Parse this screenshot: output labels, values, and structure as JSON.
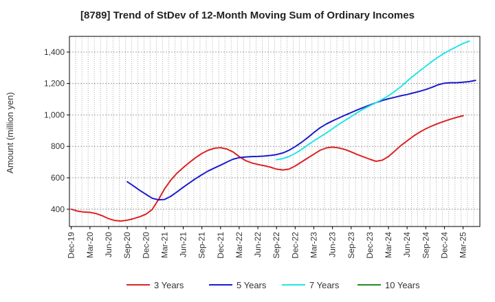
{
  "chart_data": {
    "type": "line",
    "title": "[8789]  Trend of StDev of 12-Month Moving Sum of Ordinary Incomes",
    "xlabel": "",
    "ylabel": "Amount (million yen)",
    "ylim": [
      290,
      1500
    ],
    "yticks": [
      400,
      600,
      800,
      1000,
      1200,
      1400
    ],
    "ytick_labels": [
      "400",
      "600",
      "800",
      "1,000",
      "1,200",
      "1,400"
    ],
    "xticks": [
      "Dec-19",
      "Mar-20",
      "Jun-20",
      "Sep-20",
      "Dec-20",
      "Mar-21",
      "Jun-21",
      "Sep-21",
      "Dec-21",
      "Mar-22",
      "Jun-22",
      "Sep-22",
      "Dec-22",
      "Mar-23",
      "Jun-23",
      "Sep-23",
      "Dec-23",
      "Mar-24",
      "Jun-24",
      "Sep-24",
      "Dec-24",
      "Mar-25"
    ],
    "grid": true,
    "legend_position": "bottom",
    "series": [
      {
        "name": "3 Years",
        "color": "#dd2222",
        "start_index": 0,
        "values": [
          400,
          388,
          382,
          380,
          372,
          358,
          340,
          328,
          325,
          330,
          340,
          352,
          368,
          398,
          460,
          530,
          585,
          630,
          665,
          698,
          728,
          755,
          775,
          788,
          792,
          783,
          765,
          735,
          710,
          695,
          685,
          677,
          668,
          655,
          650,
          655,
          675,
          700,
          725,
          750,
          775,
          790,
          795,
          790,
          780,
          765,
          748,
          733,
          718,
          705,
          712,
          735,
          770,
          805,
          835,
          865,
          890,
          912,
          930,
          946,
          960,
          973,
          985,
          995
        ]
      },
      {
        "name": "5 Years",
        "color": "#1a1acc",
        "start_index": 9,
        "values": [
          575,
          548,
          520,
          495,
          470,
          460,
          462,
          482,
          510,
          540,
          568,
          595,
          620,
          643,
          662,
          680,
          700,
          718,
          728,
          732,
          735,
          736,
          738,
          742,
          748,
          758,
          775,
          798,
          825,
          855,
          888,
          918,
          942,
          962,
          980,
          998,
          1015,
          1032,
          1048,
          1063,
          1078,
          1092,
          1103,
          1112,
          1122,
          1130,
          1140,
          1150,
          1162,
          1176,
          1192,
          1202,
          1205,
          1205,
          1208,
          1212,
          1220
        ]
      },
      {
        "name": "7 Years",
        "color": "#22e5e5",
        "start_index": 33,
        "values": [
          715,
          722,
          735,
          755,
          780,
          808,
          835,
          860,
          885,
          912,
          940,
          965,
          990,
          1015,
          1038,
          1058,
          1078,
          1100,
          1122,
          1150,
          1180,
          1215,
          1248,
          1280,
          1310,
          1340,
          1368,
          1393,
          1415,
          1435,
          1455,
          1470
        ]
      },
      {
        "name": "10 Years",
        "color": "#228b22",
        "start_index": 0,
        "values": []
      }
    ]
  }
}
